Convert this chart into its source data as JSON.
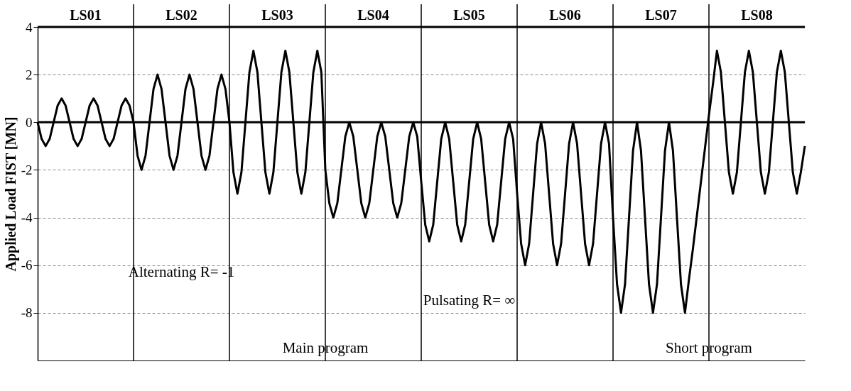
{
  "chart_data": {
    "type": "line",
    "ylabel": "Applied Load FIST [MN]",
    "categories": [
      null,
      null,
      null,
      null,
      null,
      null,
      null,
      null,
      null,
      null,
      null,
      null,
      null,
      null,
      null,
      null,
      null,
      null,
      null,
      null,
      null,
      null,
      null,
      null,
      null,
      null,
      null,
      null,
      null,
      null,
      null,
      null,
      null,
      null,
      null,
      null,
      null,
      null,
      null,
      null,
      null,
      null,
      null,
      null,
      null,
      null,
      null,
      null,
      null,
      null,
      null,
      null,
      null,
      null,
      null,
      null,
      null,
      null,
      null,
      null,
      null,
      null,
      null,
      null,
      null,
      null,
      null,
      null,
      null,
      null,
      null,
      null,
      null,
      null,
      null,
      null,
      null,
      null,
      null,
      null,
      null,
      null,
      null,
      null,
      null,
      null,
      null,
      null,
      null,
      null,
      null,
      null,
      null,
      null,
      null,
      null,
      null,
      null,
      null,
      null,
      null,
      null,
      null,
      null,
      null,
      null,
      null,
      null,
      null,
      null,
      null,
      null,
      null,
      null,
      null,
      null,
      null,
      null,
      null,
      null,
      null,
      null,
      null,
      null,
      null,
      null,
      null,
      null,
      null,
      null,
      null,
      null,
      null,
      null,
      null,
      null,
      null,
      null,
      null,
      null,
      null,
      null,
      null,
      null,
      null,
      null,
      null,
      null,
      null,
      null,
      null,
      null,
      null,
      null,
      null,
      null,
      null,
      null,
      null,
      null,
      null,
      null,
      null,
      null,
      null,
      null,
      null,
      null,
      null,
      null,
      null,
      null,
      null,
      null,
      null,
      null,
      null,
      null,
      null,
      null,
      null,
      null,
      null,
      null,
      null,
      null,
      null,
      null,
      null,
      null,
      null,
      null,
      null
    ],
    "ylim": [
      -10,
      4
    ],
    "yticks": [
      4,
      2,
      0,
      -2,
      -4,
      -6,
      -8
    ],
    "grid": "y",
    "line_style": "solid",
    "series": [
      {
        "color": "#000000",
        "values": [
          0,
          -0.7,
          -1,
          -0.7,
          0,
          0.7,
          1,
          0.7,
          0,
          -0.7,
          -1,
          -0.7,
          0,
          0.7,
          1,
          0.7,
          0,
          -0.7,
          -1,
          -0.7,
          0,
          0.7,
          1,
          0.7,
          0,
          -1.4,
          -2,
          -1.4,
          0,
          1.4,
          2,
          1.4,
          0,
          -1.4,
          -2,
          -1.4,
          0,
          1.4,
          2,
          1.4,
          0,
          -1.4,
          -2,
          -1.4,
          0,
          1.4,
          2,
          1.4,
          0,
          -2.1,
          -3,
          -2.1,
          0,
          2.1,
          3,
          2.1,
          0,
          -2.1,
          -3,
          -2.1,
          0,
          2.1,
          3,
          2.1,
          0,
          -2.1,
          -3,
          -2.1,
          0,
          2.1,
          3,
          2.1,
          -2,
          -3.4,
          -4,
          -3.4,
          -2,
          -0.6,
          0,
          -0.6,
          -2,
          -3.4,
          -4,
          -3.4,
          -2,
          -0.6,
          0,
          -0.6,
          -2,
          -3.4,
          -4,
          -3.4,
          -2,
          -0.6,
          0,
          -0.6,
          -2.5,
          -4.3,
          -5,
          -4.3,
          -2.5,
          -0.7,
          0,
          -0.7,
          -2.5,
          -4.3,
          -5,
          -4.3,
          -2.5,
          -0.7,
          0,
          -0.7,
          -2.5,
          -4.3,
          -5,
          -4.3,
          -2.5,
          -0.7,
          0,
          -0.7,
          -3,
          -5.1,
          -6,
          -5.1,
          -3,
          -0.9,
          0,
          -0.9,
          -3,
          -5.1,
          -6,
          -5.1,
          -3,
          -0.9,
          0,
          -0.9,
          -3,
          -5.1,
          -6,
          -5.1,
          -3,
          -0.9,
          0,
          -0.9,
          -4,
          -6.8,
          -8,
          -6.8,
          -4,
          -1.2,
          0,
          -1.2,
          -4,
          -6.8,
          -8,
          -6.8,
          -4,
          -1.2,
          0,
          -1.2,
          -4,
          -6.8,
          -8,
          -6.6,
          -5.3,
          -3.9,
          -2.5,
          -1.1,
          0.3,
          1.6,
          3,
          2.1,
          0,
          -2.1,
          -3,
          -2.1,
          0,
          2.1,
          3,
          2.1,
          0,
          -2.1,
          -3,
          -2.1,
          0,
          2.1,
          3,
          2.1,
          0,
          -2.1,
          -3,
          -2.1,
          -1
        ]
      }
    ],
    "ref_lines": [
      {
        "axis": "y",
        "value": 0,
        "color": "#000000"
      }
    ],
    "annotations": [
      "LS01",
      "LS02",
      "LS03",
      "LS04",
      "LS05",
      "LS06",
      "LS07",
      "LS08",
      "Alternating R= -1",
      "Pulsating R= ∞",
      "Main program",
      "Short program"
    ]
  }
}
